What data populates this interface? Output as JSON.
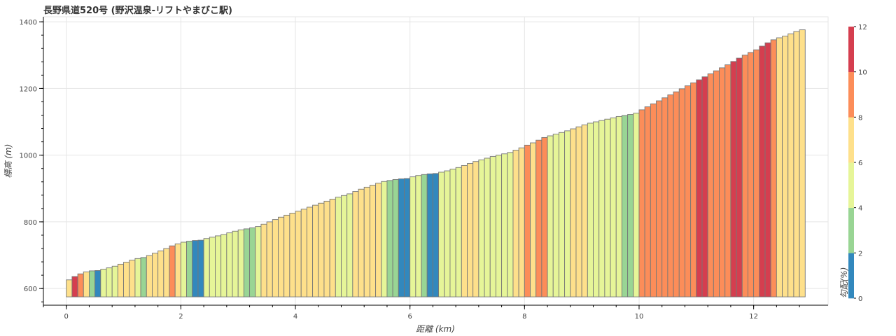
{
  "chart_data": {
    "type": "bar",
    "title": "長野県道520号 (野沢温泉-リフトやまびこ駅)",
    "xlabel": "距離 (km)",
    "ylabel": "標高 (m)",
    "xlim": [
      -0.4,
      13.3
    ],
    "ylim": [
      550,
      1415
    ],
    "base": 575,
    "bar_width_km": 0.1,
    "x_ticks": [
      0,
      2,
      4,
      6,
      8,
      10,
      12
    ],
    "x_tick_labels": [
      "0",
      "2",
      "4",
      "6",
      "8",
      "10",
      "12"
    ],
    "y_ticks": [
      600,
      800,
      1000,
      1200,
      1400
    ],
    "y_tick_labels": [
      "600",
      "800",
      "1000",
      "1200",
      "1400"
    ],
    "grid": true,
    "series": [
      {
        "x": [
          0.0,
          0.1,
          0.2,
          0.3,
          0.4,
          0.5,
          0.6,
          0.7,
          0.8,
          0.9,
          1.0,
          1.1,
          1.2,
          1.3,
          1.4,
          1.5,
          1.6,
          1.7,
          1.8,
          1.9,
          2.0,
          2.1,
          2.2,
          2.3,
          2.4,
          2.5,
          2.6,
          2.7,
          2.8,
          2.9,
          3.0,
          3.1,
          3.2,
          3.3,
          3.4,
          3.5,
          3.6,
          3.7,
          3.8,
          3.9,
          4.0,
          4.1,
          4.2,
          4.3,
          4.4,
          4.5,
          4.6,
          4.7,
          4.8,
          4.9,
          5.0,
          5.1,
          5.2,
          5.3,
          5.4,
          5.5,
          5.6,
          5.7,
          5.8,
          5.9,
          6.0,
          6.1,
          6.2,
          6.3,
          6.4,
          6.5,
          6.6,
          6.7,
          6.8,
          6.9,
          7.0,
          7.1,
          7.2,
          7.3,
          7.4,
          7.5,
          7.6,
          7.7,
          7.8,
          7.9,
          8.0,
          8.1,
          8.2,
          8.3,
          8.4,
          8.5,
          8.6,
          8.7,
          8.8,
          8.9,
          9.0,
          9.1,
          9.2,
          9.3,
          9.4,
          9.5,
          9.6,
          9.7,
          9.8,
          9.9,
          10.0,
          10.1,
          10.2,
          10.3,
          10.4,
          10.5,
          10.6,
          10.7,
          10.8,
          10.9,
          11.0,
          11.1,
          11.2,
          11.3,
          11.4,
          11.5,
          11.6,
          11.7,
          11.8,
          11.9,
          12.0,
          12.1,
          12.2,
          12.3,
          12.4,
          12.5,
          12.6,
          12.7,
          12.8
        ],
        "values": [
          626,
          636,
          644,
          650,
          653,
          654,
          658,
          662,
          667,
          673,
          679,
          685,
          690,
          693,
          699,
          706,
          713,
          720,
          728,
          734,
          739,
          742,
          744,
          745,
          750,
          754,
          758,
          762,
          767,
          772,
          776,
          779,
          782,
          786,
          793,
          800,
          807,
          814,
          820,
          826,
          832,
          838,
          844,
          850,
          856,
          862,
          868,
          874,
          879,
          884,
          891,
          898,
          904,
          910,
          916,
          921,
          924,
          927,
          929,
          930,
          935,
          939,
          942,
          944,
          945,
          949,
          953,
          958,
          963,
          969,
          975,
          981,
          986,
          991,
          996,
          1000,
          1004,
          1008,
          1015,
          1022,
          1030,
          1037,
          1045,
          1053,
          1058,
          1063,
          1068,
          1073,
          1079,
          1085,
          1091,
          1096,
          1100,
          1104,
          1108,
          1112,
          1116,
          1119,
          1122,
          1126,
          1136,
          1145,
          1154,
          1163,
          1172,
          1181,
          1190,
          1199,
          1208,
          1217,
          1226,
          1235,
          1244,
          1253,
          1262,
          1271,
          1281,
          1291,
          1300,
          1308,
          1316,
          1327,
          1337,
          1346,
          1352,
          1357,
          1364,
          1371,
          1376
        ],
        "gradient_percent": [
          6.0,
          11.0,
          9.0,
          6.0,
          3.0,
          1.0,
          4.0,
          4.0,
          5.0,
          6.0,
          6.0,
          6.0,
          5.0,
          3.0,
          6.0,
          7.0,
          7.0,
          7.0,
          8.5,
          6.0,
          5.0,
          3.0,
          1.5,
          1.0,
          5.0,
          4.5,
          4.0,
          4.5,
          5.0,
          4.5,
          4.0,
          3.0,
          3.0,
          4.5,
          7.0,
          7.0,
          7.0,
          7.0,
          6.5,
          6.5,
          6.5,
          6.0,
          6.0,
          6.0,
          6.0,
          6.0,
          6.0,
          5.5,
          5.0,
          5.0,
          7.0,
          7.0,
          6.0,
          6.0,
          6.0,
          5.0,
          3.0,
          3.0,
          1.5,
          1.0,
          5.0,
          4.5,
          3.0,
          1.5,
          1.0,
          4.0,
          4.0,
          5.0,
          5.0,
          6.0,
          6.0,
          6.0,
          5.0,
          5.0,
          5.0,
          4.0,
          4.0,
          4.0,
          7.0,
          7.0,
          8.0,
          7.0,
          8.0,
          8.0,
          5.0,
          5.0,
          5.0,
          5.0,
          6.0,
          6.0,
          6.0,
          5.0,
          4.0,
          4.0,
          4.0,
          4.0,
          4.0,
          3.0,
          3.0,
          4.0,
          9.5,
          9.5,
          9.5,
          9.5,
          9.5,
          9.0,
          9.0,
          9.0,
          9.0,
          9.0,
          10.0,
          10.5,
          9.5,
          9.5,
          9.5,
          9.5,
          10.0,
          11.0,
          9.5,
          8.5,
          8.5,
          11.0,
          10.0,
          9.0,
          6.5,
          6.5,
          7.0,
          7.0,
          6.0
        ]
      }
    ],
    "colorbar": {
      "label": "勾配(%)",
      "min": 0,
      "max": 12,
      "ticks": [
        0,
        2,
        4,
        6,
        8,
        10,
        12
      ],
      "tick_labels": [
        "0",
        "2",
        "4",
        "6",
        "8",
        "10",
        "12"
      ],
      "colors": [
        "#3288bd",
        "#99d594",
        "#e6f598",
        "#fee08b",
        "#fc8d59",
        "#d53e4f"
      ]
    }
  }
}
